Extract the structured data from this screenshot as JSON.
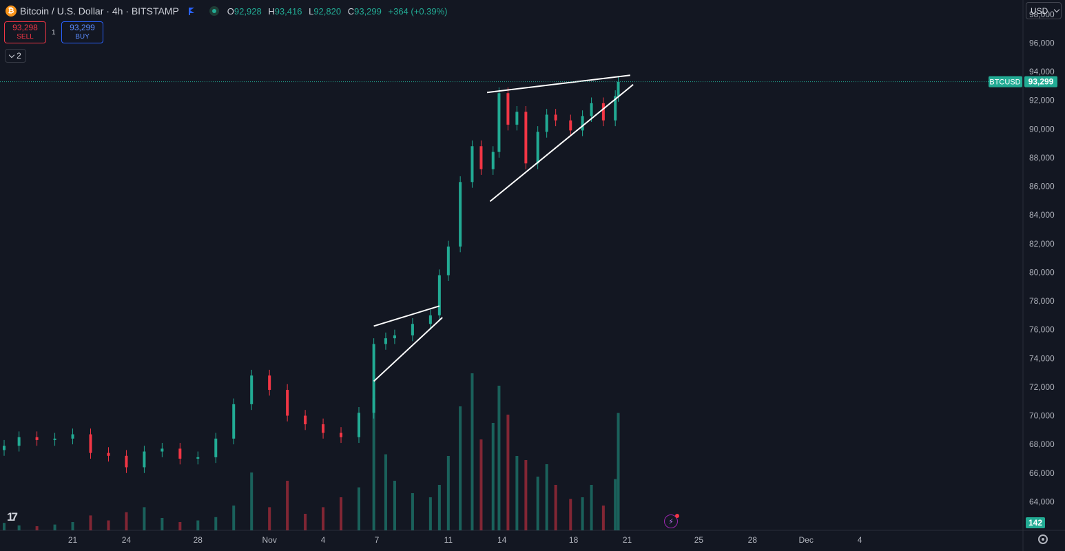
{
  "header": {
    "coin_glyph": "₿",
    "title": "Bitcoin / U.S. Dollar · 4h · BITSTAMP",
    "ohlc": [
      {
        "key": "O",
        "value": "92,928"
      },
      {
        "key": "H",
        "value": "93,416"
      },
      {
        "key": "L",
        "value": "92,820"
      },
      {
        "key": "C",
        "value": "93,299"
      }
    ],
    "change": "+364 (+0.39%)",
    "sell_price": "93,298",
    "sell_label": "SELL",
    "buy_price": "93,299",
    "buy_label": "BUY",
    "spread": "1",
    "collapse_count": "2",
    "currency": "USD",
    "logo_text": "17"
  },
  "colors": {
    "up": "#22ab94",
    "down": "#f23645",
    "background": "#131722",
    "text": "#b2b5be"
  },
  "chart_data": {
    "type": "candlestick",
    "symbol": "BTCUSD",
    "interval": "4h",
    "last_price": 93299,
    "last_price_label": "93,299",
    "volume_label": "142",
    "ylim": [
      62000,
      99000
    ],
    "y_ticks": [
      64000,
      66000,
      68000,
      70000,
      72000,
      74000,
      76000,
      78000,
      80000,
      82000,
      84000,
      86000,
      88000,
      90000,
      92000,
      94000,
      96000,
      98000
    ],
    "y_tick_labels": [
      "64,000",
      "66,000",
      "68,000",
      "70,000",
      "72,000",
      "74,000",
      "76,000",
      "78,000",
      "80,000",
      "82,000",
      "84,000",
      "86,000",
      "88,000",
      "90,000",
      "92,000",
      "94,000",
      "96,000",
      "98,000"
    ],
    "x_ticks": [
      "2024-10-21",
      "2024-10-24",
      "2024-10-28",
      "2024-11-01",
      "2024-11-04",
      "2024-11-07",
      "2024-11-11",
      "2024-11-14",
      "2024-11-18",
      "2024-11-21",
      "2024-11-25",
      "2024-11-28",
      "2024-12-01",
      "2024-12-04"
    ],
    "x_tick_labels": [
      "21",
      "24",
      "28",
      "Nov",
      "4",
      "7",
      "11",
      "14",
      "18",
      "21",
      "25",
      "28",
      "Dec",
      "4"
    ],
    "x_start": "2024-10-17T04:00",
    "x_end": "2024-12-06T00:00",
    "bars": [
      {
        "d": "2024-10-17T04:00",
        "c": 67900,
        "v": 9
      },
      {
        "d": "2024-10-18T00:00",
        "c": 68500,
        "v": 6
      },
      {
        "d": "2024-10-19T00:00",
        "c": 68300,
        "v": 5
      },
      {
        "d": "2024-10-20T00:00",
        "c": 68400,
        "v": 7
      },
      {
        "d": "2024-10-21T00:00",
        "c": 68700,
        "v": 10
      },
      {
        "d": "2024-10-22T00:00",
        "c": 67400,
        "v": 18
      },
      {
        "d": "2024-10-23T00:00",
        "c": 67200,
        "v": 12
      },
      {
        "d": "2024-10-24T00:00",
        "c": 66400,
        "v": 22
      },
      {
        "d": "2024-10-25T00:00",
        "c": 67500,
        "v": 28
      },
      {
        "d": "2024-10-26T00:00",
        "c": 67700,
        "v": 15
      },
      {
        "d": "2024-10-27T00:00",
        "c": 67000,
        "v": 10
      },
      {
        "d": "2024-10-28T00:00",
        "c": 67100,
        "v": 12
      },
      {
        "d": "2024-10-29T00:00",
        "c": 68400,
        "v": 16
      },
      {
        "d": "2024-10-30T00:00",
        "c": 70800,
        "v": 30
      },
      {
        "d": "2024-10-31T00:00",
        "c": 72800,
        "v": 70
      },
      {
        "d": "2024-11-01T00:00",
        "c": 71800,
        "v": 28
      },
      {
        "d": "2024-11-02T00:00",
        "c": 70000,
        "v": 60
      },
      {
        "d": "2024-11-03T00:00",
        "c": 69400,
        "v": 20
      },
      {
        "d": "2024-11-04T00:00",
        "c": 68800,
        "v": 28
      },
      {
        "d": "2024-11-05T00:00",
        "c": 68500,
        "v": 40
      },
      {
        "d": "2024-11-06T00:00",
        "c": 70200,
        "v": 52
      },
      {
        "d": "2024-11-06T20:00",
        "c": 75000,
        "v": 160
      },
      {
        "d": "2024-11-07T12:00",
        "c": 75400,
        "v": 92
      },
      {
        "d": "2024-11-08T00:00",
        "c": 75600,
        "v": 60
      },
      {
        "d": "2024-11-09T00:00",
        "c": 76400,
        "v": 45
      },
      {
        "d": "2024-11-10T00:00",
        "c": 77000,
        "v": 40
      },
      {
        "d": "2024-11-10T12:00",
        "c": 79800,
        "v": 55
      },
      {
        "d": "2024-11-11T00:00",
        "c": 81800,
        "v": 90
      },
      {
        "d": "2024-11-11T16:00",
        "c": 86300,
        "v": 150
      },
      {
        "d": "2024-11-12T08:00",
        "c": 88800,
        "v": 190
      },
      {
        "d": "2024-11-12T20:00",
        "c": 87200,
        "v": 110
      },
      {
        "d": "2024-11-13T12:00",
        "c": 88400,
        "v": 130
      },
      {
        "d": "2024-11-13T20:00",
        "c": 92500,
        "v": 175
      },
      {
        "d": "2024-11-14T08:00",
        "c": 90300,
        "v": 140
      },
      {
        "d": "2024-11-14T20:00",
        "c": 91200,
        "v": 90
      },
      {
        "d": "2024-11-15T08:00",
        "c": 87600,
        "v": 85
      },
      {
        "d": "2024-11-16T00:00",
        "c": 89800,
        "v": 65
      },
      {
        "d": "2024-11-16T12:00",
        "c": 91000,
        "v": 80
      },
      {
        "d": "2024-11-17T00:00",
        "c": 90600,
        "v": 55
      },
      {
        "d": "2024-11-17T20:00",
        "c": 89900,
        "v": 38
      },
      {
        "d": "2024-11-18T12:00",
        "c": 90900,
        "v": 40
      },
      {
        "d": "2024-11-19T00:00",
        "c": 91800,
        "v": 55
      },
      {
        "d": "2024-11-19T16:00",
        "c": 90600,
        "v": 30
      },
      {
        "d": "2024-11-20T08:00",
        "c": 92300,
        "v": 62
      },
      {
        "d": "2024-11-20T12:00",
        "c": 93299,
        "v": 142
      }
    ],
    "trendlines": [
      {
        "name": "wedge-1-upper",
        "x1": "2024-11-06T20:00",
        "y1": 76250,
        "x2": "2024-11-10T12:00",
        "y2": 77650
      },
      {
        "name": "wedge-1-lower",
        "x1": "2024-11-06T20:00",
        "y1": 72400,
        "x2": "2024-11-10T16:00",
        "y2": 76850
      },
      {
        "name": "wedge-2-upper",
        "x1": "2024-11-13T04:00",
        "y1": 92550,
        "x2": "2024-11-21T04:00",
        "y2": 93750
      },
      {
        "name": "wedge-2-lower",
        "x1": "2024-11-13T08:00",
        "y1": 84950,
        "x2": "2024-11-21T08:00",
        "y2": 93100
      }
    ]
  }
}
